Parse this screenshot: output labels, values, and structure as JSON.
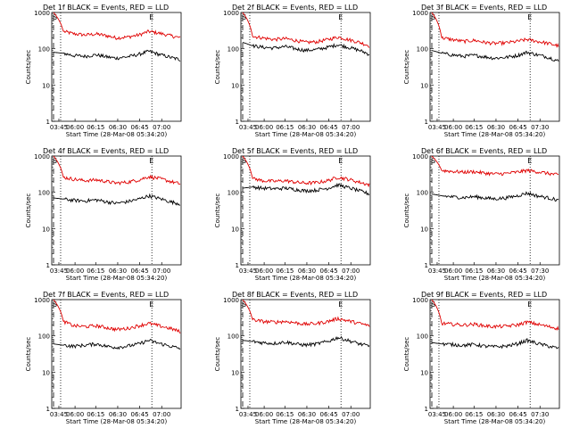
{
  "colors": {
    "background": "#ffffff",
    "axis": "#000000",
    "events": "#000000",
    "lld": "#e00000"
  },
  "chart_data": [
    {
      "type": "line",
      "title": "Det 1f BLACK = Events, RED = LLD",
      "xlabel": "Start Time (28-Mar-08 05:34:20)",
      "ylabel": "Counts/sec",
      "yscale": "log",
      "ylim": [
        1,
        1000
      ],
      "ytick_labels": [
        "1",
        "10",
        "100",
        "1000"
      ],
      "xtick_labels": [
        "03:45",
        "06:00",
        "06:15",
        "06:30",
        "06:45",
        "07:00"
      ],
      "markers": [
        "S",
        "E"
      ],
      "series": [
        {
          "name": "LLD",
          "color": "#e00000",
          "x": [
            "05:38",
            "05:45",
            "05:52",
            "06:00",
            "06:08",
            "06:15",
            "06:22",
            "06:30",
            "06:38",
            "06:45",
            "06:52",
            "07:00",
            "07:07"
          ],
          "y": [
            1000,
            300,
            260,
            240,
            255,
            230,
            200,
            210,
            240,
            300,
            270,
            230,
            200
          ]
        },
        {
          "name": "Events",
          "color": "#000000",
          "x": [
            "05:38",
            "05:45",
            "05:52",
            "06:00",
            "06:08",
            "06:15",
            "06:22",
            "06:30",
            "06:38",
            "06:45",
            "06:52",
            "07:00",
            "07:07"
          ],
          "y": [
            80,
            75,
            65,
            62,
            68,
            60,
            55,
            60,
            70,
            85,
            70,
            58,
            50
          ]
        }
      ]
    },
    {
      "type": "line",
      "title": "Det 2f BLACK = Events, RED = LLD",
      "xlabel": "Start Time (28-Mar-08 05:34:20)",
      "ylabel": "Counts/sec",
      "yscale": "log",
      "ylim": [
        1,
        1000
      ],
      "ytick_labels": [
        "1",
        "10",
        "100",
        "1000"
      ],
      "xtick_labels": [
        "03:45",
        "06:00",
        "06:15",
        "06:30",
        "06:45",
        "07:00"
      ],
      "markers": [
        "S",
        "E"
      ],
      "series": [
        {
          "name": "LLD",
          "color": "#e00000",
          "x": [
            "05:38",
            "05:45",
            "05:52",
            "06:00",
            "06:08",
            "06:15",
            "06:22",
            "06:30",
            "06:38",
            "06:45",
            "06:52",
            "07:00",
            "07:07"
          ],
          "y": [
            1000,
            220,
            200,
            180,
            190,
            170,
            150,
            155,
            180,
            210,
            180,
            150,
            120
          ]
        },
        {
          "name": "Events",
          "color": "#000000",
          "x": [
            "05:38",
            "05:45",
            "05:52",
            "06:00",
            "06:08",
            "06:15",
            "06:22",
            "06:30",
            "06:38",
            "06:45",
            "06:52",
            "07:00",
            "07:07"
          ],
          "y": [
            150,
            120,
            110,
            105,
            115,
            100,
            90,
            95,
            110,
            130,
            110,
            90,
            70
          ]
        }
      ]
    },
    {
      "type": "line",
      "title": "Det 3f BLACK = Events, RED = LLD",
      "xlabel": "Start Time (28-Mar-08 05:34:20)",
      "ylabel": "Counts/sec",
      "yscale": "log",
      "ylim": [
        1,
        1000
      ],
      "ytick_labels": [
        "1",
        "10",
        "100",
        "1000"
      ],
      "xtick_labels": [
        "03:45",
        "06:00",
        "06:15",
        "06:30",
        "06:45",
        "07:30"
      ],
      "markers": [
        "S",
        "E"
      ],
      "series": [
        {
          "name": "LLD",
          "color": "#e00000",
          "x": [
            "05:38",
            "05:45",
            "05:52",
            "06:00",
            "06:08",
            "06:15",
            "06:22",
            "06:30",
            "06:38",
            "06:45",
            "06:52",
            "07:00",
            "07:07"
          ],
          "y": [
            1000,
            200,
            180,
            160,
            170,
            150,
            140,
            145,
            160,
            180,
            160,
            140,
            120
          ]
        },
        {
          "name": "Events",
          "color": "#000000",
          "x": [
            "05:38",
            "05:45",
            "05:52",
            "06:00",
            "06:08",
            "06:15",
            "06:22",
            "06:30",
            "06:38",
            "06:45",
            "06:52",
            "07:00",
            "07:07"
          ],
          "y": [
            90,
            75,
            68,
            62,
            66,
            60,
            55,
            58,
            65,
            80,
            68,
            58,
            45
          ]
        }
      ]
    },
    {
      "type": "line",
      "title": "Det 4f BLACK = Events, RED = LLD",
      "xlabel": "Start Time (28-Mar-08 05:34:20)",
      "ylabel": "Counts/sec",
      "yscale": "log",
      "ylim": [
        1,
        1000
      ],
      "ytick_labels": [
        "1",
        "10",
        "100",
        "1000"
      ],
      "xtick_labels": [
        "03:45",
        "06:00",
        "06:15",
        "06:30",
        "06:45",
        "07:00"
      ],
      "markers": [
        "S",
        "E"
      ],
      "series": [
        {
          "name": "LLD",
          "color": "#e00000",
          "x": [
            "05:38",
            "05:45",
            "05:52",
            "06:00",
            "06:08",
            "06:15",
            "06:22",
            "06:30",
            "06:38",
            "06:45",
            "06:52",
            "07:00",
            "07:07"
          ],
          "y": [
            1000,
            260,
            230,
            210,
            220,
            200,
            180,
            190,
            220,
            270,
            240,
            200,
            170
          ]
        },
        {
          "name": "Events",
          "color": "#000000",
          "x": [
            "05:38",
            "05:45",
            "05:52",
            "06:00",
            "06:08",
            "06:15",
            "06:22",
            "06:30",
            "06:38",
            "06:45",
            "06:52",
            "07:00",
            "07:07"
          ],
          "y": [
            70,
            65,
            60,
            58,
            62,
            55,
            50,
            55,
            65,
            80,
            68,
            55,
            48
          ]
        }
      ]
    },
    {
      "type": "line",
      "title": "Det 5f BLACK = Events, RED = LLD",
      "xlabel": "Start Time (28-Mar-08 05:34:20)",
      "ylabel": "Counts/sec",
      "yscale": "log",
      "ylim": [
        1,
        1000
      ],
      "ytick_labels": [
        "1",
        "10",
        "100",
        "1000"
      ],
      "xtick_labels": [
        "03:45",
        "06:00",
        "06:15",
        "06:30",
        "06:45",
        "07:00"
      ],
      "markers": [
        "S",
        "E"
      ],
      "series": [
        {
          "name": "LLD",
          "color": "#e00000",
          "x": [
            "05:38",
            "05:45",
            "05:52",
            "06:00",
            "06:08",
            "06:15",
            "06:22",
            "06:30",
            "06:38",
            "06:45",
            "06:52",
            "07:00",
            "07:07"
          ],
          "y": [
            1000,
            240,
            210,
            200,
            210,
            190,
            180,
            185,
            210,
            260,
            230,
            190,
            160
          ]
        },
        {
          "name": "Events",
          "color": "#000000",
          "x": [
            "05:38",
            "05:45",
            "05:52",
            "06:00",
            "06:08",
            "06:15",
            "06:22",
            "06:30",
            "06:38",
            "06:45",
            "06:52",
            "07:00",
            "07:07"
          ],
          "y": [
            130,
            140,
            130,
            125,
            130,
            120,
            110,
            115,
            130,
            160,
            135,
            110,
            90
          ]
        }
      ]
    },
    {
      "type": "line",
      "title": "Det 6f BLACK = Events, RED = LLD",
      "xlabel": "Start Time (28-Mar-08 05:34:20)",
      "ylabel": "Counts/sec",
      "yscale": "log",
      "ylim": [
        1,
        1000
      ],
      "ytick_labels": [
        "1",
        "10",
        "100",
        "1000"
      ],
      "xtick_labels": [
        "03:45",
        "06:00",
        "06:15",
        "06:30",
        "06:45",
        "07:30"
      ],
      "markers": [
        "S",
        "E"
      ],
      "series": [
        {
          "name": "LLD",
          "color": "#e00000",
          "x": [
            "05:38",
            "05:45",
            "05:52",
            "06:00",
            "06:08",
            "06:15",
            "06:22",
            "06:30",
            "06:38",
            "06:45",
            "06:52",
            "07:00",
            "07:07"
          ],
          "y": [
            1000,
            400,
            380,
            360,
            370,
            340,
            320,
            330,
            360,
            400,
            370,
            330,
            300
          ]
        },
        {
          "name": "Events",
          "color": "#000000",
          "x": [
            "05:38",
            "05:45",
            "05:52",
            "06:00",
            "06:08",
            "06:15",
            "06:22",
            "06:30",
            "06:38",
            "06:45",
            "06:52",
            "07:00",
            "07:07"
          ],
          "y": [
            90,
            80,
            75,
            72,
            76,
            70,
            66,
            70,
            80,
            95,
            80,
            70,
            60
          ]
        }
      ]
    },
    {
      "type": "line",
      "title": "Det 7f BLACK = Events, RED = LLD",
      "xlabel": "Start Time (28-Mar-08 05:34:20)",
      "ylabel": "Counts/sec",
      "yscale": "log",
      "ylim": [
        1,
        1000
      ],
      "ytick_labels": [
        "1",
        "10",
        "100",
        "1000"
      ],
      "xtick_labels": [
        "03:45",
        "06:00",
        "06:15",
        "06:30",
        "06:45",
        "07:00"
      ],
      "markers": [
        "S",
        "E"
      ],
      "series": [
        {
          "name": "LLD",
          "color": "#e00000",
          "x": [
            "05:38",
            "05:45",
            "05:52",
            "06:00",
            "06:08",
            "06:15",
            "06:22",
            "06:30",
            "06:38",
            "06:45",
            "06:52",
            "07:00",
            "07:07"
          ],
          "y": [
            1000,
            250,
            190,
            180,
            190,
            170,
            150,
            160,
            190,
            220,
            190,
            160,
            130
          ]
        },
        {
          "name": "Events",
          "color": "#000000",
          "x": [
            "05:38",
            "05:45",
            "05:52",
            "06:00",
            "06:08",
            "06:15",
            "06:22",
            "06:30",
            "06:38",
            "06:45",
            "06:52",
            "07:00",
            "07:07"
          ],
          "y": [
            60,
            55,
            52,
            55,
            60,
            52,
            48,
            52,
            60,
            75,
            62,
            52,
            45
          ]
        }
      ]
    },
    {
      "type": "line",
      "title": "Det 8f BLACK = Events, RED = LLD",
      "xlabel": "Start Time (28-Mar-08 05:34:20)",
      "ylabel": "Counts/sec",
      "yscale": "log",
      "ylim": [
        1,
        1000
      ],
      "ytick_labels": [
        "1",
        "10",
        "100",
        "1000"
      ],
      "xtick_labels": [
        "03:45",
        "06:00",
        "06:15",
        "06:30",
        "06:45",
        "07:00"
      ],
      "markers": [
        "S",
        "E"
      ],
      "series": [
        {
          "name": "LLD",
          "color": "#e00000",
          "x": [
            "05:38",
            "05:45",
            "05:52",
            "06:00",
            "06:08",
            "06:15",
            "06:22",
            "06:30",
            "06:38",
            "06:45",
            "06:52",
            "07:00",
            "07:07"
          ],
          "y": [
            1000,
            280,
            250,
            240,
            250,
            230,
            210,
            220,
            250,
            300,
            260,
            220,
            190
          ]
        },
        {
          "name": "Events",
          "color": "#000000",
          "x": [
            "05:38",
            "05:45",
            "05:52",
            "06:00",
            "06:08",
            "06:15",
            "06:22",
            "06:30",
            "06:38",
            "06:45",
            "06:52",
            "07:00",
            "07:07"
          ],
          "y": [
            75,
            70,
            65,
            62,
            68,
            60,
            56,
            60,
            70,
            90,
            75,
            60,
            52
          ]
        }
      ]
    },
    {
      "type": "line",
      "title": "Det 9f BLACK = Events, RED = LLD",
      "xlabel": "Start Time (28-Mar-08 05:34:20)",
      "ylabel": "Counts/sec",
      "yscale": "log",
      "ylim": [
        1,
        1000
      ],
      "ytick_labels": [
        "1",
        "10",
        "100",
        "1000"
      ],
      "xtick_labels": [
        "03:45",
        "06:00",
        "06:15",
        "06:30",
        "06:45",
        "07:30"
      ],
      "markers": [
        "S",
        "E"
      ],
      "series": [
        {
          "name": "LLD",
          "color": "#e00000",
          "x": [
            "05:38",
            "05:45",
            "05:52",
            "06:00",
            "06:08",
            "06:15",
            "06:22",
            "06:30",
            "06:38",
            "06:45",
            "06:52",
            "07:00",
            "07:07"
          ],
          "y": [
            1000,
            220,
            210,
            200,
            210,
            190,
            180,
            185,
            200,
            240,
            210,
            180,
            160
          ]
        },
        {
          "name": "Events",
          "color": "#000000",
          "x": [
            "05:38",
            "05:45",
            "05:52",
            "06:00",
            "06:08",
            "06:15",
            "06:22",
            "06:30",
            "06:38",
            "06:45",
            "06:52",
            "07:00",
            "07:07"
          ],
          "y": [
            65,
            60,
            58,
            55,
            58,
            52,
            50,
            52,
            60,
            75,
            62,
            52,
            45
          ]
        }
      ]
    }
  ]
}
